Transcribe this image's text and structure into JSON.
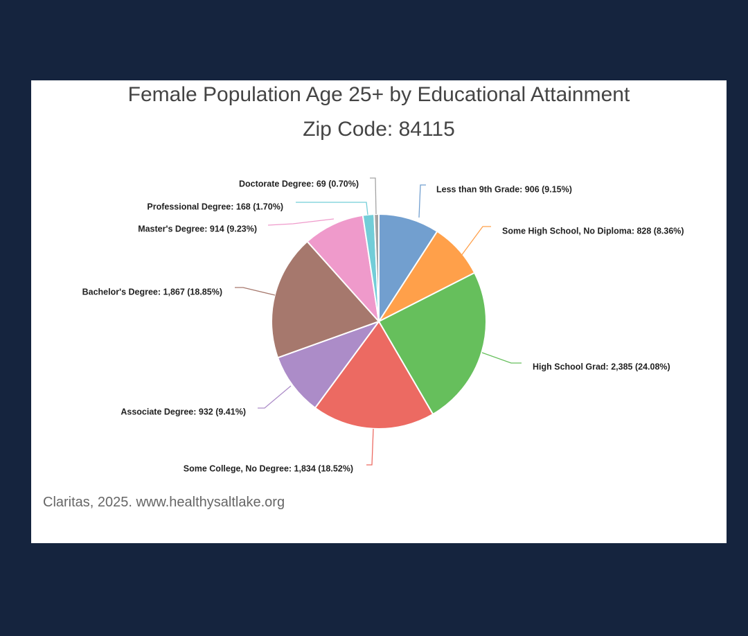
{
  "chart_data": {
    "type": "pie",
    "title": "Female Population Age 25+ by Educational Attainment",
    "subtitle": "Zip Code: 84115",
    "source": "Claritas, 2025. www.healthysaltlake.org",
    "slices": [
      {
        "category": "Less than 9th Grade",
        "value": 906,
        "percent": "9.15%",
        "label": "Less than 9th Grade: 906 (9.15%)",
        "color": "#729fcf"
      },
      {
        "category": "Some High School, No Diploma",
        "value": 828,
        "percent": "8.36%",
        "label": "Some High School, No Diploma: 828 (8.36%)",
        "color": "#ffa04a"
      },
      {
        "category": "High School Grad",
        "value": 2385,
        "percent": "24.08%",
        "label": "High School Grad: 2,385 (24.08%)",
        "color": "#66bf5c"
      },
      {
        "category": "Some College, No Degree",
        "value": 1834,
        "percent": "18.52%",
        "label": "Some College, No Degree: 1,834 (18.52%)",
        "color": "#ec6a62"
      },
      {
        "category": "Associate Degree",
        "value": 932,
        "percent": "9.41%",
        "label": "Associate Degree: 932 (9.41%)",
        "color": "#ac8cc8"
      },
      {
        "category": "Bachelor's Degree",
        "value": 1867,
        "percent": "18.85%",
        "label": "Bachelor's Degree: 1,867 (18.85%)",
        "color": "#a6786d"
      },
      {
        "category": "Master's Degree",
        "value": 914,
        "percent": "9.23%",
        "label": "Master's Degree: 914 (9.23%)",
        "color": "#ef9acb"
      },
      {
        "category": "Professional Degree",
        "value": 168,
        "percent": "1.70%",
        "label": "Professional Degree: 168 (1.70%)",
        "color": "#72cdd8"
      },
      {
        "category": "Doctorate Degree",
        "value": 69,
        "percent": "0.70%",
        "label": "Doctorate Degree: 69 (0.70%)",
        "color": "#a3a3a3"
      }
    ]
  }
}
